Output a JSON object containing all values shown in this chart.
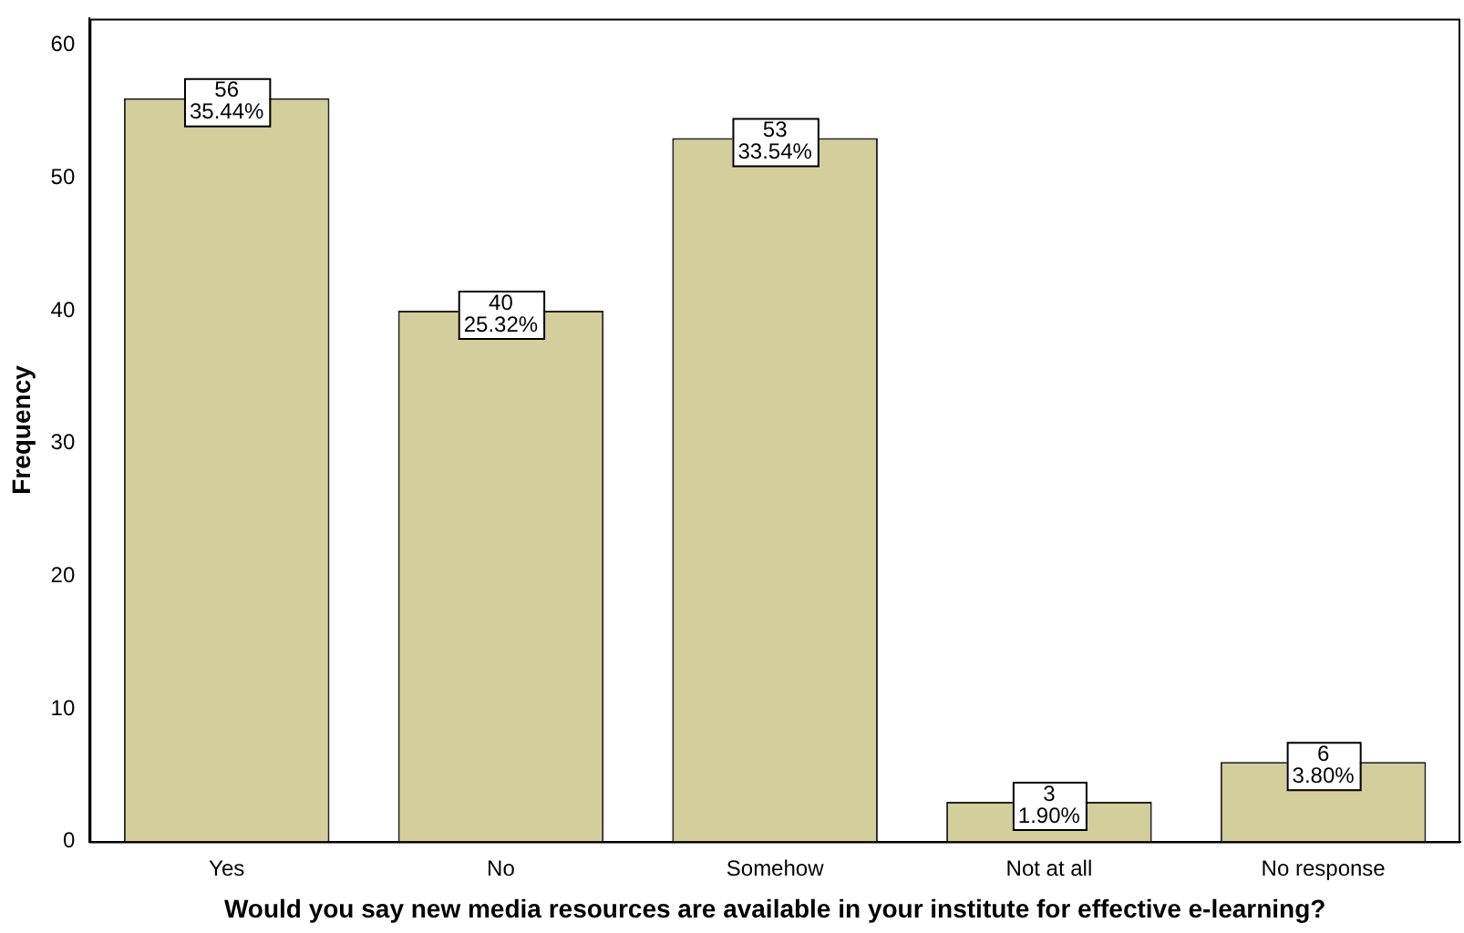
{
  "chart_data": {
    "type": "bar",
    "xlabel": "Would you say new media resources are available in your institute for effective e-learning?",
    "ylabel": "Frequency",
    "categories": [
      "Yes",
      "No",
      "Somehow",
      "Not at all",
      "No response"
    ],
    "values": [
      56,
      40,
      53,
      3,
      6
    ],
    "value_labels": [
      "56\n35.44%",
      "40\n25.32%",
      "53\n33.54%",
      "3\n1.90%",
      "6\n3.80%"
    ],
    "color": "#d3ce9c",
    "ylim": [
      0,
      62
    ],
    "yticks": [
      0,
      10,
      20,
      30,
      40,
      50,
      60
    ],
    "grid": false,
    "legend": false
  }
}
